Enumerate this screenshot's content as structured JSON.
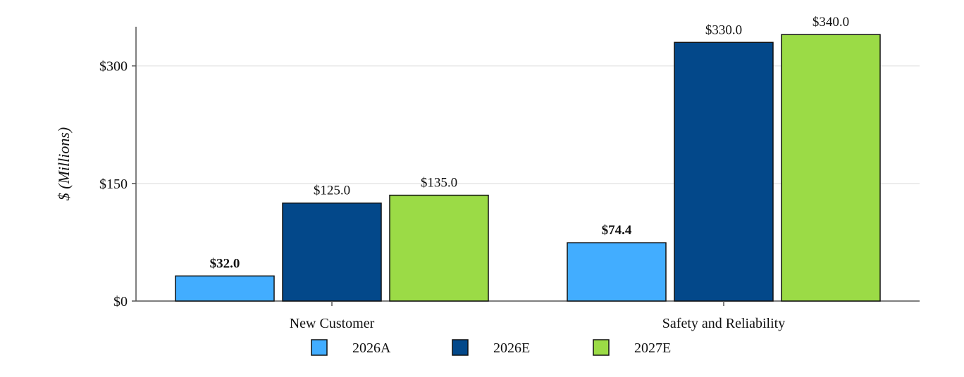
{
  "chart_data": {
    "type": "bar",
    "title": "",
    "xlabel": "",
    "ylabel": "$ (Millions)",
    "ylim": [
      0,
      350
    ],
    "yticks": [
      {
        "value": 0,
        "label": "$0"
      },
      {
        "value": 150,
        "label": "$150"
      },
      {
        "value": 300,
        "label": "$300"
      }
    ],
    "grid": true,
    "legend_position": "bottom-center",
    "categories": [
      "New Customer",
      "Safety and Reliability"
    ],
    "series": [
      {
        "name": "2026A",
        "color": "#42ADFF",
        "values": [
          32.0,
          74.4
        ],
        "labels": [
          "$32.0",
          "$74.4"
        ],
        "bold_labels": true
      },
      {
        "name": "2026E",
        "color": "#03488A",
        "values": [
          125.0,
          330.0
        ],
        "labels": [
          "$125.0",
          "$330.0"
        ],
        "bold_labels": false
      },
      {
        "name": "2027E",
        "color": "#9BDB46",
        "values": [
          135.0,
          340.0
        ],
        "labels": [
          "$135.0",
          "$340.0"
        ],
        "bold_labels": false
      }
    ]
  }
}
